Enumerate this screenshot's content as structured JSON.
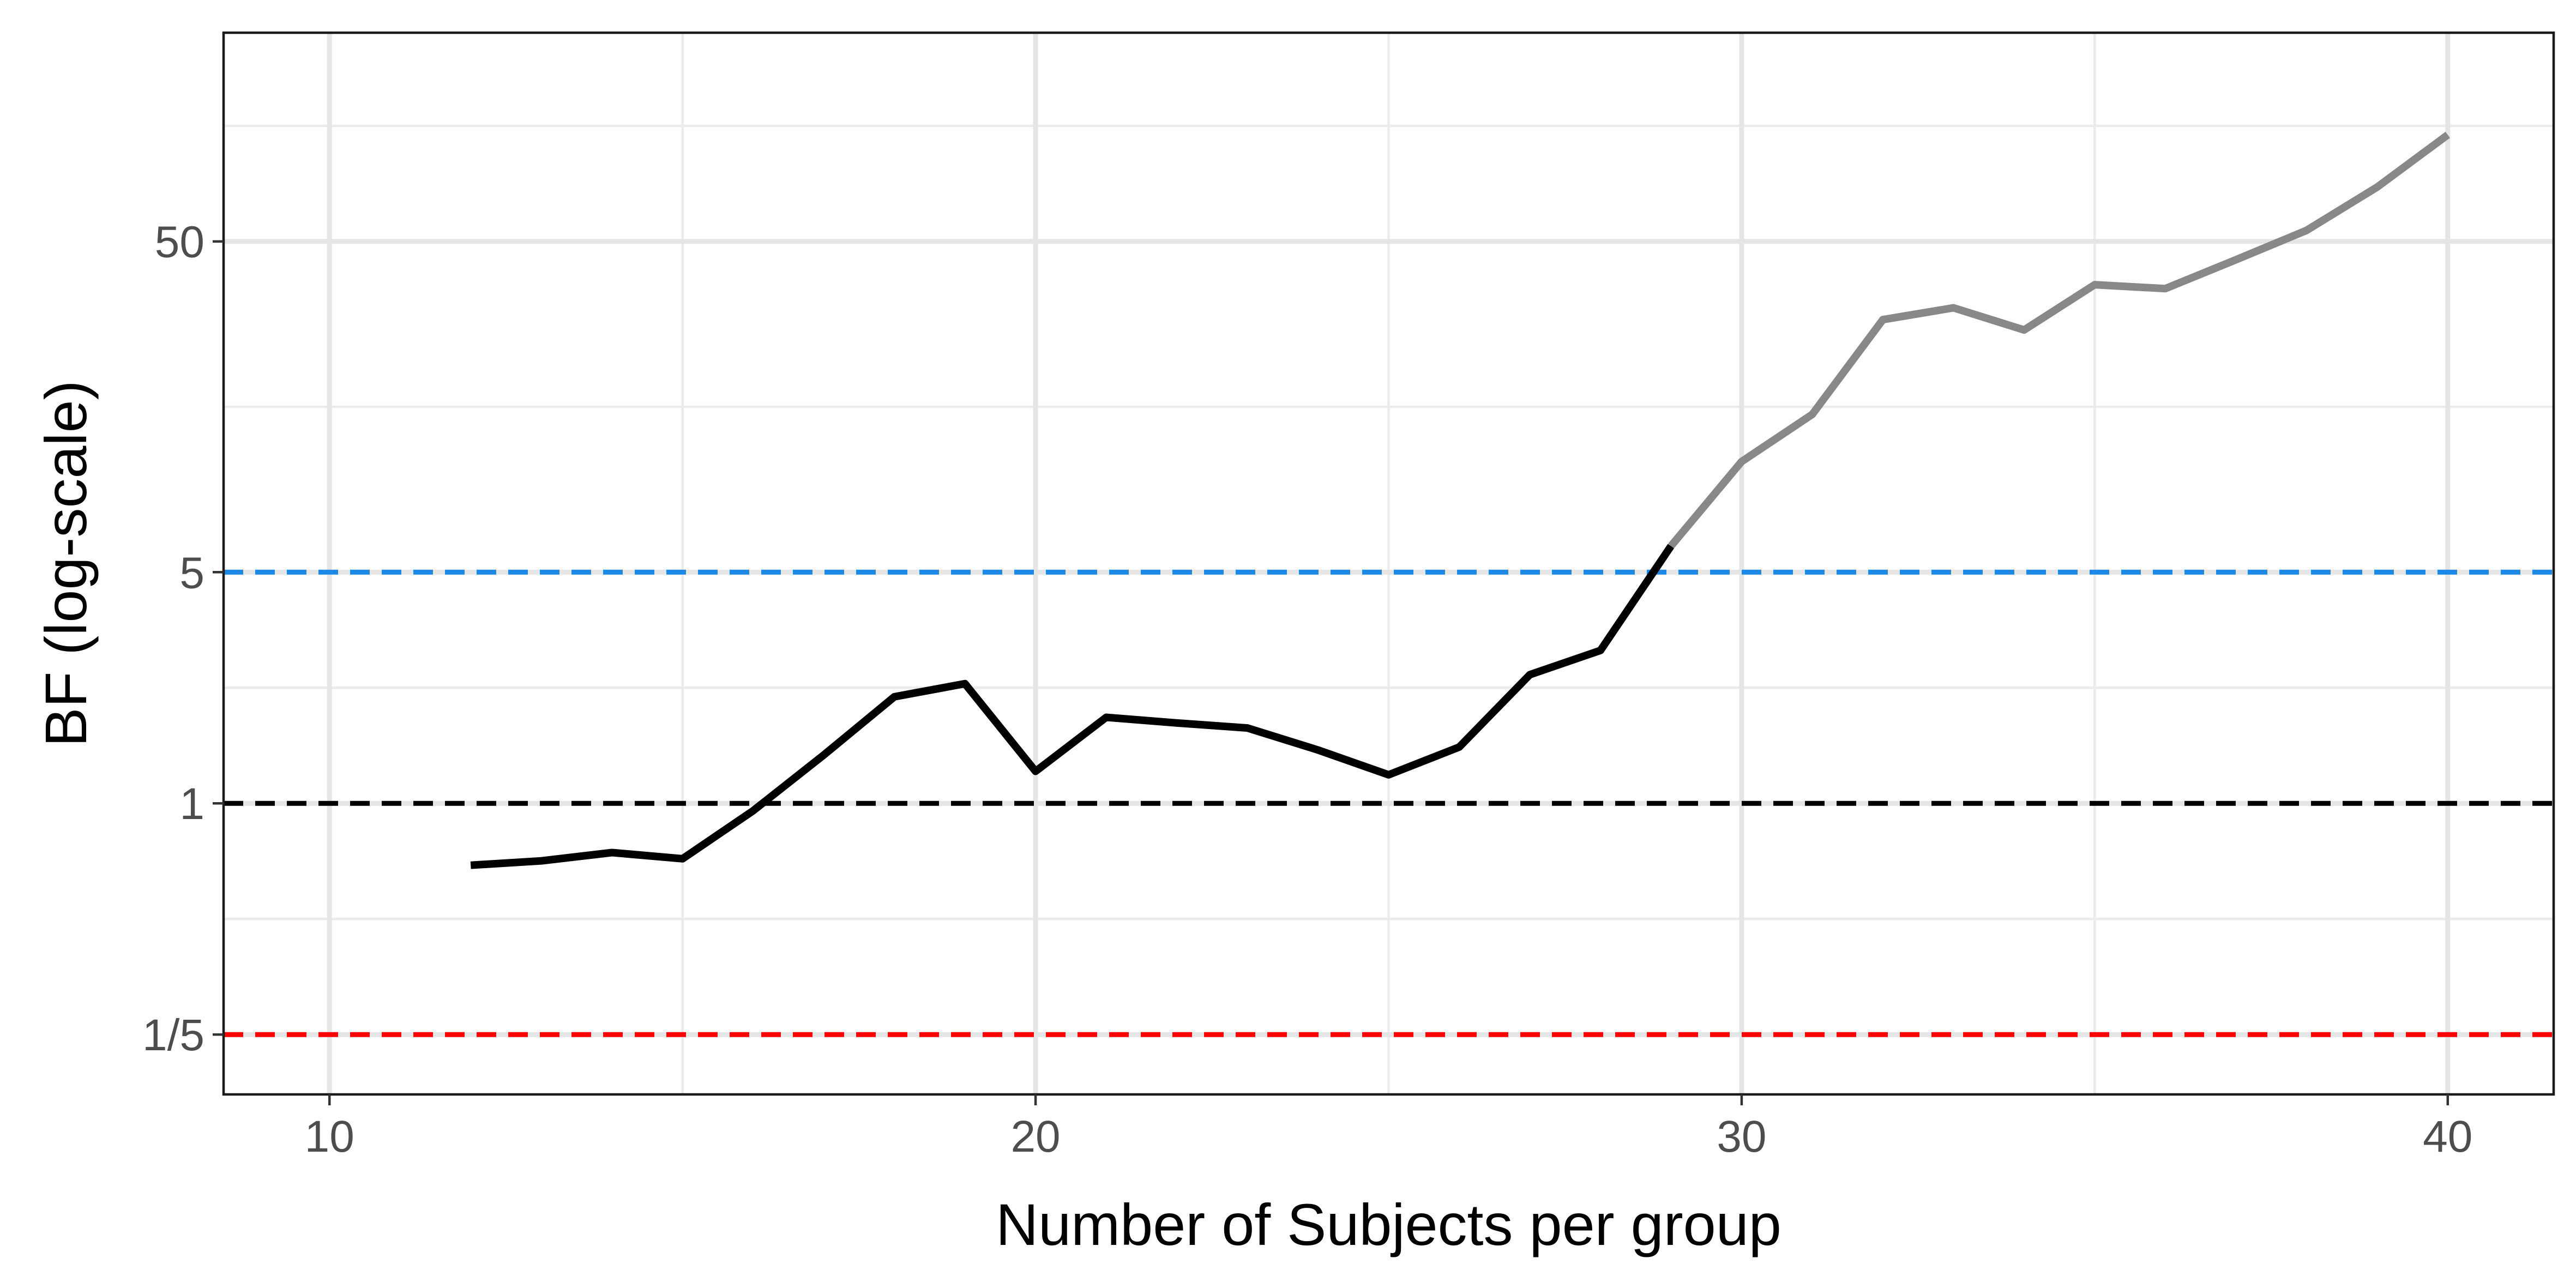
{
  "chart_data": {
    "type": "line",
    "title": "",
    "xlabel": "Number of Subjects per group",
    "ylabel": "BF (log-scale)",
    "xlim": [
      8.5,
      41.5
    ],
    "ylim_log10": [
      -0.88,
      2.33
    ],
    "y_scale": "log",
    "grid": true,
    "x_ticks": [
      {
        "value": 10,
        "label": "10"
      },
      {
        "value": 20,
        "label": "20"
      },
      {
        "value": 30,
        "label": "30"
      },
      {
        "value": 40,
        "label": "40"
      }
    ],
    "y_ticks": [
      {
        "value": 0.2,
        "label": "1/5"
      },
      {
        "value": 1,
        "label": "1"
      },
      {
        "value": 5,
        "label": "5"
      },
      {
        "value": 50,
        "label": "50"
      }
    ],
    "reference_lines": [
      {
        "y": 5,
        "color": "#1e88e5",
        "style": "dashed"
      },
      {
        "y": 1,
        "color": "#000000",
        "style": "dashed"
      },
      {
        "y": 0.2,
        "color": "#ff0000",
        "style": "dashed"
      }
    ],
    "series": [
      {
        "color": "#000000",
        "x": [
          12,
          13,
          14,
          15,
          16,
          17,
          18,
          19,
          20,
          21,
          22,
          23,
          24,
          25,
          26,
          27,
          28,
          29
        ],
        "y": [
          0.65,
          0.67,
          0.71,
          0.68,
          0.95,
          1.4,
          2.1,
          2.3,
          1.25,
          1.82,
          1.75,
          1.69,
          1.45,
          1.22,
          1.48,
          2.45,
          2.9,
          6.0
        ]
      },
      {
        "color": "#888888",
        "x": [
          29,
          30,
          31,
          32,
          33,
          34,
          35,
          36,
          37,
          38,
          39,
          40
        ],
        "y": [
          6.0,
          10.8,
          15.0,
          29.0,
          31.5,
          27.0,
          37.0,
          36.0,
          44.0,
          54.0,
          73.0,
          105.0
        ]
      }
    ]
  }
}
